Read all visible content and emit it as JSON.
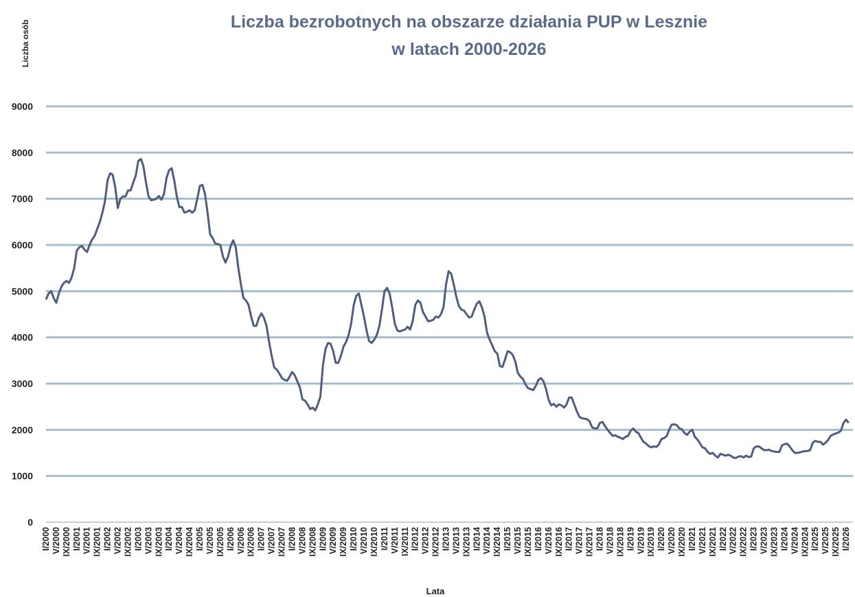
{
  "chart_data": {
    "type": "line",
    "title": "Liczba bezrobotnych na obszarze działania PUP w Lesznie",
    "subtitle": "w latach 2000-2026",
    "y_label": "Liczba osób",
    "x_label": "Lata",
    "color": "#4e5c7e",
    "grid_color": "#a7bdcb",
    "grid": true,
    "ylim": [
      0,
      9000
    ],
    "yticks": [
      0,
      1000,
      2000,
      3000,
      4000,
      5000,
      6000,
      7000,
      8000,
      9000
    ],
    "categories": [
      "I/2000",
      null,
      null,
      null,
      "V/2000",
      null,
      null,
      null,
      "IX/2000",
      null,
      null,
      null,
      "I/2001",
      null,
      null,
      null,
      "V/2001",
      null,
      null,
      null,
      "IX/2001",
      null,
      null,
      null,
      "I/2002",
      null,
      null,
      null,
      "V/2002",
      null,
      null,
      null,
      "IX/2002",
      null,
      null,
      null,
      "I/2003",
      null,
      null,
      null,
      "V/2003",
      null,
      null,
      null,
      "IX/2003",
      null,
      null,
      null,
      "I/2004",
      null,
      null,
      null,
      "V/2004",
      null,
      null,
      null,
      "IX/2004",
      null,
      null,
      null,
      "I/2005",
      null,
      null,
      null,
      "V/2005",
      null,
      null,
      null,
      "IX/2005",
      null,
      null,
      null,
      "I/2006",
      null,
      null,
      null,
      "V/2006",
      null,
      null,
      null,
      "IX/2006",
      null,
      null,
      null,
      "I/2007",
      null,
      null,
      null,
      "V/2007",
      null,
      null,
      null,
      "IX/2007",
      null,
      null,
      null,
      "I/2008",
      null,
      null,
      null,
      "V/2008",
      null,
      null,
      null,
      "IX/2008",
      null,
      null,
      null,
      "I/2009",
      null,
      null,
      null,
      "V/2009",
      null,
      null,
      null,
      "IX/2009",
      null,
      null,
      null,
      "I/2010",
      null,
      null,
      null,
      "V/2010",
      null,
      null,
      null,
      "IX/2010",
      null,
      null,
      null,
      "I/2011",
      null,
      null,
      null,
      "V/2011",
      null,
      null,
      null,
      "IX/2011",
      null,
      null,
      null,
      "I/2012",
      null,
      null,
      null,
      "V/2012",
      null,
      null,
      null,
      "IX/2012",
      null,
      null,
      null,
      "I/2013",
      null,
      null,
      null,
      "V/2013",
      null,
      null,
      null,
      "IX/2013",
      null,
      null,
      null,
      "I/2014",
      null,
      null,
      null,
      "V/2014",
      null,
      null,
      null,
      "IX/2014",
      null,
      null,
      null,
      "I/2015",
      null,
      null,
      null,
      "V/2015",
      null,
      null,
      null,
      "IX/2015",
      null,
      null,
      null,
      "I/2016",
      null,
      null,
      null,
      "V/2016",
      null,
      null,
      null,
      "IX/2016",
      null,
      null,
      null,
      "I/2017",
      null,
      null,
      null,
      "V/2017",
      null,
      null,
      null,
      "IX/2017",
      null,
      null,
      null,
      "I/2018",
      null,
      null,
      null,
      "V/2018",
      null,
      null,
      null,
      "IX/2018",
      null,
      null,
      null,
      "I/2019",
      null,
      null,
      null,
      "V/2019",
      null,
      null,
      null,
      "IX/2019",
      null,
      null,
      null,
      "I/2020",
      null,
      null,
      null,
      "V/2020",
      null,
      null,
      null,
      "IX/2020",
      null,
      null,
      null,
      "I/2021",
      null,
      null,
      null,
      "V/2021",
      null,
      null,
      null,
      "IX/2021",
      null,
      null,
      null,
      "I/2022",
      null,
      null,
      null,
      "V/2022",
      null,
      null,
      null,
      "IX/2022",
      null,
      null,
      null,
      "I/2023",
      null,
      null,
      null,
      "V/2023",
      null,
      null,
      null,
      "IX/2023",
      null,
      null,
      null,
      "I/2024",
      null,
      null,
      null,
      "V/2024",
      null,
      null,
      null,
      "IX/2024",
      null,
      null,
      null,
      "I/2025",
      null,
      null,
      null,
      "V/2025",
      null,
      null,
      null,
      "IX/2025",
      null,
      null,
      null,
      "I/2026",
      null
    ],
    "values": [
      4820,
      4950,
      5000,
      4850,
      4750,
      4950,
      5100,
      5180,
      5220,
      5180,
      5300,
      5500,
      5880,
      5950,
      5980,
      5900,
      5850,
      6000,
      6120,
      6200,
      6350,
      6500,
      6700,
      6950,
      7400,
      7550,
      7520,
      7250,
      6800,
      7000,
      7050,
      7050,
      7180,
      7180,
      7350,
      7500,
      7820,
      7860,
      7700,
      7350,
      7050,
      6970,
      6980,
      7000,
      7060,
      6980,
      7100,
      7450,
      7620,
      7660,
      7400,
      7050,
      6820,
      6820,
      6700,
      6720,
      6750,
      6700,
      6750,
      7000,
      7280,
      7300,
      7100,
      6700,
      6230,
      6150,
      6030,
      6020,
      6000,
      5750,
      5620,
      5750,
      5980,
      6100,
      5950,
      5500,
      5150,
      4850,
      4800,
      4700,
      4450,
      4250,
      4250,
      4420,
      4520,
      4420,
      4250,
      3900,
      3600,
      3350,
      3300,
      3220,
      3120,
      3080,
      3060,
      3150,
      3250,
      3180,
      3050,
      2920,
      2660,
      2630,
      2550,
      2450,
      2480,
      2420,
      2550,
      2720,
      3400,
      3750,
      3880,
      3860,
      3700,
      3450,
      3450,
      3600,
      3800,
      3900,
      4050,
      4300,
      4700,
      4900,
      4950,
      4700,
      4450,
      4150,
      3920,
      3880,
      3950,
      4050,
      4250,
      4600,
      5000,
      5070,
      4950,
      4650,
      4300,
      4150,
      4130,
      4150,
      4170,
      4230,
      4170,
      4350,
      4700,
      4800,
      4750,
      4550,
      4450,
      4350,
      4360,
      4380,
      4450,
      4430,
      4500,
      4650,
      5150,
      5430,
      5380,
      5150,
      4880,
      4680,
      4600,
      4580,
      4500,
      4430,
      4450,
      4600,
      4730,
      4780,
      4650,
      4450,
      4100,
      3950,
      3830,
      3700,
      3650,
      3380,
      3360,
      3520,
      3700,
      3680,
      3620,
      3480,
      3230,
      3150,
      3100,
      2980,
      2900,
      2880,
      2860,
      2950,
      3080,
      3120,
      3050,
      2880,
      2650,
      2530,
      2560,
      2500,
      2550,
      2530,
      2480,
      2550,
      2700,
      2700,
      2550,
      2400,
      2280,
      2250,
      2240,
      2230,
      2180,
      2050,
      2030,
      2030,
      2150,
      2170,
      2080,
      2000,
      1930,
      1870,
      1880,
      1850,
      1830,
      1800,
      1850,
      1870,
      1980,
      2030,
      1960,
      1930,
      1830,
      1740,
      1700,
      1650,
      1620,
      1640,
      1630,
      1680,
      1800,
      1820,
      1860,
      2000,
      2110,
      2120,
      2100,
      2030,
      2010,
      1930,
      1890,
      1960,
      2000,
      1850,
      1790,
      1710,
      1620,
      1600,
      1520,
      1480,
      1500,
      1440,
      1400,
      1480,
      1460,
      1440,
      1460,
      1440,
      1400,
      1390,
      1420,
      1430,
      1400,
      1440,
      1410,
      1420,
      1600,
      1640,
      1640,
      1600,
      1560,
      1560,
      1570,
      1540,
      1530,
      1520,
      1520,
      1660,
      1690,
      1700,
      1640,
      1560,
      1500,
      1500,
      1510,
      1530,
      1540,
      1540,
      1560,
      1720,
      1760,
      1740,
      1740,
      1680,
      1720,
      1780,
      1870,
      1900,
      1920,
      1940,
      1980,
      2150,
      2220,
      2150
    ]
  }
}
